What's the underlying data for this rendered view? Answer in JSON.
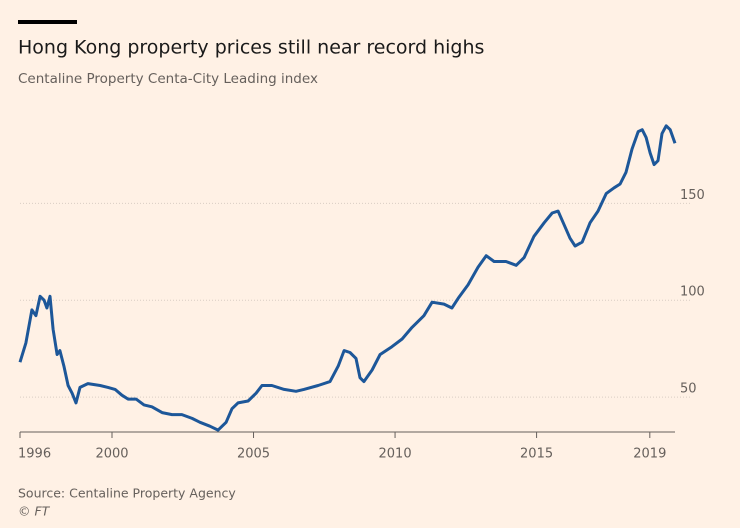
{
  "chart_data": {
    "type": "line",
    "title": "Hong Kong property prices still near record highs",
    "subtitle": "Centaline Property Centa-City Leading index",
    "source": "Source: Centaline Property Agency",
    "credit": "© FT",
    "color": "#1d5799",
    "grid": true,
    "x": [
      1996.75,
      1996.96,
      1997.17,
      1997.31,
      1997.46,
      1997.6,
      1997.7,
      1997.81,
      1997.92,
      1998.06,
      1998.16,
      1998.3,
      1998.45,
      1998.59,
      1998.73,
      1998.87,
      1999.15,
      1999.58,
      1999.86,
      2000.11,
      2000.35,
      2000.57,
      2000.85,
      2001.13,
      2001.41,
      2001.77,
      2002.12,
      2002.47,
      2002.83,
      2003.11,
      2003.46,
      2003.75,
      2004.03,
      2004.24,
      2004.45,
      2004.81,
      2005.09,
      2005.3,
      2005.65,
      2006.08,
      2006.5,
      2006.78,
      2007.28,
      2007.7,
      2007.99,
      2008.2,
      2008.41,
      2008.62,
      2008.76,
      2008.9,
      2009.19,
      2009.47,
      2009.89,
      2010.25,
      2010.6,
      2011.02,
      2011.31,
      2011.73,
      2012.01,
      2012.23,
      2012.58,
      2012.93,
      2013.22,
      2013.5,
      2013.92,
      2014.28,
      2014.56,
      2014.91,
      2015.27,
      2015.55,
      2015.76,
      2015.94,
      2016.18,
      2016.36,
      2016.61,
      2016.89,
      2017.17,
      2017.46,
      2017.74,
      2017.95,
      2018.16,
      2018.37,
      2018.59,
      2018.73,
      2018.87,
      2019.01,
      2019.15,
      2019.29,
      2019.43,
      2019.58,
      2019.72,
      2019.89
    ],
    "values": [
      68,
      78,
      95,
      92,
      102,
      100,
      96,
      102,
      85,
      72,
      74,
      66,
      56,
      52,
      47,
      55,
      57,
      56,
      55,
      54,
      51,
      49,
      49,
      46,
      45,
      42,
      41,
      41,
      39,
      37,
      35,
      33,
      37,
      44,
      47,
      48,
      52,
      56,
      56,
      54,
      53,
      54,
      56,
      58,
      66,
      74,
      73,
      70,
      60,
      58,
      64,
      72,
      76,
      80,
      86,
      92,
      99,
      98,
      96,
      101,
      108,
      117,
      123,
      120,
      120,
      118,
      122,
      133,
      140,
      145,
      146,
      140,
      132,
      128,
      130,
      140,
      146,
      155,
      158,
      160,
      166,
      178,
      187,
      188,
      184,
      176,
      170,
      172,
      186,
      190,
      188,
      181
    ],
    "xlim": [
      1996.75,
      2019.89
    ],
    "xticks": [
      {
        "value": 1996.75,
        "label": "1996"
      },
      2000,
      2005,
      2010,
      2015,
      2019
    ],
    "ylim": [
      32,
      193
    ],
    "yticks": [
      50,
      100,
      150
    ]
  }
}
